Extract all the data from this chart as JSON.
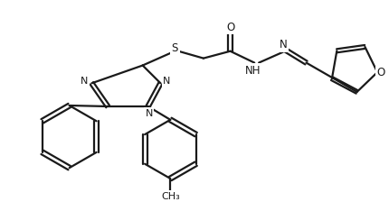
{
  "background_color": "#ffffff",
  "line_color": "#1a1a1a",
  "line_width": 1.6,
  "font_size": 8.5,
  "figsize": [
    4.3,
    2.34
  ],
  "dpi": 100,
  "xlim": [
    0,
    430
  ],
  "ylim": [
    0,
    234
  ]
}
